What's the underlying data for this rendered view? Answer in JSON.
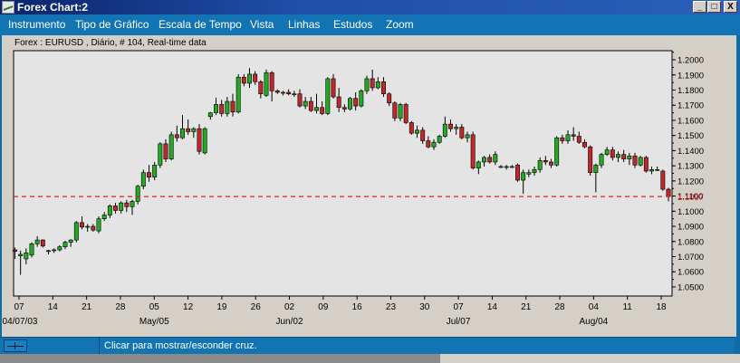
{
  "window": {
    "title": "Forex Chart:2",
    "buttons": {
      "minimize": "_",
      "maximize": "□",
      "close": "X"
    }
  },
  "menu": [
    "Instrumento",
    "Tipo de Gráfico",
    "Escala de Tempo",
    "Vista",
    "Linhas",
    "Estudos",
    "Zoom"
  ],
  "chart_header": "Forex : EURUSD , Diário, # 104, Real-time data",
  "status": {
    "text": "Clicar para mostrar/esconder cruz."
  },
  "colors": {
    "up": "#22aa22",
    "down": "#c0282a",
    "plot_bg": "#e4e4e4",
    "level_line": "#e02020"
  },
  "chart_data": {
    "type": "candlestick",
    "instrument": "EURUSD",
    "timeframe": "Diário",
    "ylim": [
      1.044,
      1.206
    ],
    "yticks": [
      "1.2000",
      "1.1900",
      "1.1800",
      "1.1700",
      "1.1600",
      "1.1500",
      "1.1400",
      "1.1300",
      "1.1200",
      "1.1100",
      "1.1000",
      "1.0900",
      "1.0800",
      "1.0700",
      "1.0600",
      "1.0500"
    ],
    "x_tick_labels": [
      {
        "day": "07",
        "month": "04/07/03"
      },
      {
        "day": "14",
        "month": ""
      },
      {
        "day": "21",
        "month": ""
      },
      {
        "day": "28",
        "month": ""
      },
      {
        "day": "05",
        "month": "May/05"
      },
      {
        "day": "12",
        "month": ""
      },
      {
        "day": "19",
        "month": ""
      },
      {
        "day": "26",
        "month": ""
      },
      {
        "day": "02",
        "month": "Jun/02"
      },
      {
        "day": "09",
        "month": ""
      },
      {
        "day": "16",
        "month": ""
      },
      {
        "day": "23",
        "month": ""
      },
      {
        "day": "30",
        "month": ""
      },
      {
        "day": "07",
        "month": "Jul/07"
      },
      {
        "day": "14",
        "month": ""
      },
      {
        "day": "21",
        "month": ""
      },
      {
        "day": "28",
        "month": ""
      },
      {
        "day": "04",
        "month": "Aug/04"
      },
      {
        "day": "11",
        "month": ""
      },
      {
        "day": "18",
        "month": ""
      }
    ],
    "current_price": "1.1097",
    "level": 1.1097,
    "candles": [
      {
        "o": 1.0745,
        "h": 1.076,
        "l": 1.0685,
        "c": 1.0735
      },
      {
        "o": 1.0705,
        "h": 1.074,
        "l": 1.058,
        "c": 1.0715
      },
      {
        "o": 1.0685,
        "h": 1.0755,
        "l": 1.065,
        "c": 1.0725
      },
      {
        "o": 1.071,
        "h": 1.0795,
        "l": 1.0695,
        "c": 1.0785
      },
      {
        "o": 1.0785,
        "h": 1.0835,
        "l": 1.0765,
        "c": 1.081
      },
      {
        "o": 1.081,
        "h": 1.0815,
        "l": 1.076,
        "c": 1.077
      },
      {
        "o": 1.0735,
        "h": 1.0745,
        "l": 1.0715,
        "c": 1.074
      },
      {
        "o": 1.0745,
        "h": 1.0755,
        "l": 1.0725,
        "c": 1.0745
      },
      {
        "o": 1.0745,
        "h": 1.0775,
        "l": 1.0735,
        "c": 1.0765
      },
      {
        "o": 1.0765,
        "h": 1.0805,
        "l": 1.075,
        "c": 1.0795
      },
      {
        "o": 1.0795,
        "h": 1.0815,
        "l": 1.0765,
        "c": 1.081
      },
      {
        "o": 1.081,
        "h": 1.0935,
        "l": 1.0795,
        "c": 1.0925
      },
      {
        "o": 1.0925,
        "h": 1.0965,
        "l": 1.088,
        "c": 1.0895
      },
      {
        "o": 1.0895,
        "h": 1.0915,
        "l": 1.0865,
        "c": 1.09
      },
      {
        "o": 1.09,
        "h": 1.0915,
        "l": 1.0865,
        "c": 1.0875
      },
      {
        "o": 1.087,
        "h": 1.0965,
        "l": 1.0855,
        "c": 1.095
      },
      {
        "o": 1.095,
        "h": 1.0995,
        "l": 1.0935,
        "c": 1.0975
      },
      {
        "o": 1.0975,
        "h": 1.1045,
        "l": 1.0955,
        "c": 1.1035
      },
      {
        "o": 1.1035,
        "h": 1.1055,
        "l": 1.0985,
        "c": 1.1005
      },
      {
        "o": 1.1005,
        "h": 1.1065,
        "l": 1.0985,
        "c": 1.1055
      },
      {
        "o": 1.1055,
        "h": 1.1075,
        "l": 1.0995,
        "c": 1.103
      },
      {
        "o": 1.103,
        "h": 1.1075,
        "l": 1.0975,
        "c": 1.1065
      },
      {
        "o": 1.1065,
        "h": 1.1175,
        "l": 1.1045,
        "c": 1.1165
      },
      {
        "o": 1.1165,
        "h": 1.1275,
        "l": 1.1145,
        "c": 1.1255
      },
      {
        "o": 1.1255,
        "h": 1.1305,
        "l": 1.1195,
        "c": 1.1225
      },
      {
        "o": 1.1225,
        "h": 1.1325,
        "l": 1.1205,
        "c": 1.1305
      },
      {
        "o": 1.1305,
        "h": 1.1455,
        "l": 1.1285,
        "c": 1.1445
      },
      {
        "o": 1.1445,
        "h": 1.1475,
        "l": 1.1325,
        "c": 1.1345
      },
      {
        "o": 1.1345,
        "h": 1.1525,
        "l": 1.1335,
        "c": 1.1505
      },
      {
        "o": 1.1505,
        "h": 1.1565,
        "l": 1.146,
        "c": 1.1485
      },
      {
        "o": 1.1485,
        "h": 1.1635,
        "l": 1.1475,
        "c": 1.1545
      },
      {
        "o": 1.1545,
        "h": 1.1605,
        "l": 1.1505,
        "c": 1.1525
      },
      {
        "o": 1.1525,
        "h": 1.1555,
        "l": 1.1485,
        "c": 1.1545
      },
      {
        "o": 1.1545,
        "h": 1.1575,
        "l": 1.1375,
        "c": 1.1395
      },
      {
        "o": 1.1385,
        "h": 1.1555,
        "l": 1.1375,
        "c": 1.1545
      },
      {
        "o": 1.1625,
        "h": 1.1655,
        "l": 1.1605,
        "c": 1.165
      },
      {
        "o": 1.165,
        "h": 1.175,
        "l": 1.1635,
        "c": 1.1705
      },
      {
        "o": 1.1705,
        "h": 1.1735,
        "l": 1.1625,
        "c": 1.1645
      },
      {
        "o": 1.1645,
        "h": 1.1755,
        "l": 1.1625,
        "c": 1.1725
      },
      {
        "o": 1.1725,
        "h": 1.1775,
        "l": 1.1625,
        "c": 1.1655
      },
      {
        "o": 1.1655,
        "h": 1.1905,
        "l": 1.1645,
        "c": 1.1885
      },
      {
        "o": 1.1885,
        "h": 1.1905,
        "l": 1.1825,
        "c": 1.1845
      },
      {
        "o": 1.1845,
        "h": 1.1945,
        "l": 1.1815,
        "c": 1.1905
      },
      {
        "o": 1.1905,
        "h": 1.1925,
        "l": 1.1835,
        "c": 1.1855
      },
      {
        "o": 1.1855,
        "h": 1.1865,
        "l": 1.1745,
        "c": 1.1775
      },
      {
        "o": 1.1765,
        "h": 1.1935,
        "l": 1.1755,
        "c": 1.1915
      },
      {
        "o": 1.1915,
        "h": 1.1925,
        "l": 1.1725,
        "c": 1.1795
      },
      {
        "o": 1.1795,
        "h": 1.1805,
        "l": 1.1775,
        "c": 1.1785
      },
      {
        "o": 1.1785,
        "h": 1.1795,
        "l": 1.1765,
        "c": 1.1785
      },
      {
        "o": 1.1785,
        "h": 1.1805,
        "l": 1.1765,
        "c": 1.1775
      },
      {
        "o": 1.1775,
        "h": 1.1795,
        "l": 1.1755,
        "c": 1.1775
      },
      {
        "o": 1.1775,
        "h": 1.1805,
        "l": 1.1685,
        "c": 1.1695
      },
      {
        "o": 1.1695,
        "h": 1.1755,
        "l": 1.1675,
        "c": 1.1725
      },
      {
        "o": 1.1725,
        "h": 1.1755,
        "l": 1.1655,
        "c": 1.1665
      },
      {
        "o": 1.1665,
        "h": 1.1775,
        "l": 1.1645,
        "c": 1.1685
      },
      {
        "o": 1.1685,
        "h": 1.1725,
        "l": 1.1635,
        "c": 1.1645
      },
      {
        "o": 1.1645,
        "h": 1.1885,
        "l": 1.1635,
        "c": 1.1875
      },
      {
        "o": 1.1875,
        "h": 1.1905,
        "l": 1.1745,
        "c": 1.1755
      },
      {
        "o": 1.1755,
        "h": 1.1815,
        "l": 1.1655,
        "c": 1.1685
      },
      {
        "o": 1.1685,
        "h": 1.1705,
        "l": 1.1655,
        "c": 1.1675
      },
      {
        "o": 1.1675,
        "h": 1.1755,
        "l": 1.1665,
        "c": 1.1745
      },
      {
        "o": 1.1745,
        "h": 1.1785,
        "l": 1.1665,
        "c": 1.1695
      },
      {
        "o": 1.1695,
        "h": 1.1805,
        "l": 1.1685,
        "c": 1.1795
      },
      {
        "o": 1.1795,
        "h": 1.1895,
        "l": 1.1775,
        "c": 1.1875
      },
      {
        "o": 1.1875,
        "h": 1.1935,
        "l": 1.1795,
        "c": 1.1815
      },
      {
        "o": 1.1815,
        "h": 1.1885,
        "l": 1.1805,
        "c": 1.1855
      },
      {
        "o": 1.1855,
        "h": 1.1885,
        "l": 1.1755,
        "c": 1.1775
      },
      {
        "o": 1.1775,
        "h": 1.1785,
        "l": 1.1695,
        "c": 1.1715
      },
      {
        "o": 1.1715,
        "h": 1.1725,
        "l": 1.1595,
        "c": 1.1615
      },
      {
        "o": 1.1615,
        "h": 1.1715,
        "l": 1.1595,
        "c": 1.1705
      },
      {
        "o": 1.1705,
        "h": 1.1715,
        "l": 1.1575,
        "c": 1.1585
      },
      {
        "o": 1.1585,
        "h": 1.1595,
        "l": 1.1505,
        "c": 1.1515
      },
      {
        "o": 1.1515,
        "h": 1.1565,
        "l": 1.1485,
        "c": 1.1535
      },
      {
        "o": 1.1535,
        "h": 1.1555,
        "l": 1.1445,
        "c": 1.1465
      },
      {
        "o": 1.1465,
        "h": 1.1495,
        "l": 1.1415,
        "c": 1.1425
      },
      {
        "o": 1.1425,
        "h": 1.1475,
        "l": 1.1405,
        "c": 1.1455
      },
      {
        "o": 1.1455,
        "h": 1.1505,
        "l": 1.1445,
        "c": 1.1495
      },
      {
        "o": 1.1495,
        "h": 1.1625,
        "l": 1.1485,
        "c": 1.1575
      },
      {
        "o": 1.1575,
        "h": 1.1605,
        "l": 1.1525,
        "c": 1.1545
      },
      {
        "o": 1.1545,
        "h": 1.1575,
        "l": 1.1505,
        "c": 1.1555
      },
      {
        "o": 1.1555,
        "h": 1.1575,
        "l": 1.1475,
        "c": 1.1485
      },
      {
        "o": 1.1485,
        "h": 1.1525,
        "l": 1.1455,
        "c": 1.1505
      },
      {
        "o": 1.1505,
        "h": 1.1525,
        "l": 1.1275,
        "c": 1.1285
      },
      {
        "o": 1.1285,
        "h": 1.1335,
        "l": 1.1245,
        "c": 1.1325
      },
      {
        "o": 1.1325,
        "h": 1.1365,
        "l": 1.1295,
        "c": 1.1355
      },
      {
        "o": 1.1355,
        "h": 1.1375,
        "l": 1.1315,
        "c": 1.1325
      },
      {
        "o": 1.1325,
        "h": 1.1395,
        "l": 1.1305,
        "c": 1.1375
      },
      {
        "o": 1.1295,
        "h": 1.1305,
        "l": 1.1285,
        "c": 1.1295
      },
      {
        "o": 1.1295,
        "h": 1.1305,
        "l": 1.1275,
        "c": 1.1295
      },
      {
        "o": 1.1295,
        "h": 1.1305,
        "l": 1.1285,
        "c": 1.1295
      },
      {
        "o": 1.1305,
        "h": 1.1315,
        "l": 1.1195,
        "c": 1.1205
      },
      {
        "o": 1.1205,
        "h": 1.1275,
        "l": 1.1115,
        "c": 1.1255
      },
      {
        "o": 1.1245,
        "h": 1.1275,
        "l": 1.1225,
        "c": 1.1255
      },
      {
        "o": 1.1255,
        "h": 1.1295,
        "l": 1.1235,
        "c": 1.1275
      },
      {
        "o": 1.1275,
        "h": 1.1355,
        "l": 1.1255,
        "c": 1.1335
      },
      {
        "o": 1.1335,
        "h": 1.1365,
        "l": 1.1305,
        "c": 1.1325
      },
      {
        "o": 1.1325,
        "h": 1.1345,
        "l": 1.1285,
        "c": 1.1305
      },
      {
        "o": 1.1305,
        "h": 1.1495,
        "l": 1.1295,
        "c": 1.1485
      },
      {
        "o": 1.1485,
        "h": 1.1505,
        "l": 1.1445,
        "c": 1.1465
      },
      {
        "o": 1.1465,
        "h": 1.1535,
        "l": 1.1445,
        "c": 1.1505
      },
      {
        "o": 1.1505,
        "h": 1.1555,
        "l": 1.1465,
        "c": 1.1495
      },
      {
        "o": 1.1495,
        "h": 1.1525,
        "l": 1.1445,
        "c": 1.1455
      },
      {
        "o": 1.1455,
        "h": 1.1475,
        "l": 1.1415,
        "c": 1.1425
      },
      {
        "o": 1.1425,
        "h": 1.1435,
        "l": 1.1235,
        "c": 1.1255
      },
      {
        "o": 1.1255,
        "h": 1.1315,
        "l": 1.1125,
        "c": 1.1305
      },
      {
        "o": 1.1305,
        "h": 1.1385,
        "l": 1.1285,
        "c": 1.1375
      },
      {
        "o": 1.1375,
        "h": 1.1425,
        "l": 1.1365,
        "c": 1.1405
      },
      {
        "o": 1.1405,
        "h": 1.1425,
        "l": 1.1335,
        "c": 1.1355
      },
      {
        "o": 1.1355,
        "h": 1.1395,
        "l": 1.1325,
        "c": 1.1375
      },
      {
        "o": 1.1375,
        "h": 1.1405,
        "l": 1.1325,
        "c": 1.1345
      },
      {
        "o": 1.1345,
        "h": 1.1385,
        "l": 1.1305,
        "c": 1.1365
      },
      {
        "o": 1.1365,
        "h": 1.1385,
        "l": 1.1285,
        "c": 1.1305
      },
      {
        "o": 1.1305,
        "h": 1.1365,
        "l": 1.1295,
        "c": 1.1355
      },
      {
        "o": 1.1355,
        "h": 1.1365,
        "l": 1.1255,
        "c": 1.1265
      },
      {
        "o": 1.1265,
        "h": 1.1295,
        "l": 1.1245,
        "c": 1.1275
      },
      {
        "o": 1.1275,
        "h": 1.1295,
        "l": 1.1265,
        "c": 1.1275
      },
      {
        "o": 1.1265,
        "h": 1.1275,
        "l": 1.1135,
        "c": 1.1145
      },
      {
        "o": 1.1145,
        "h": 1.1155,
        "l": 1.1065,
        "c": 1.1097
      }
    ]
  }
}
